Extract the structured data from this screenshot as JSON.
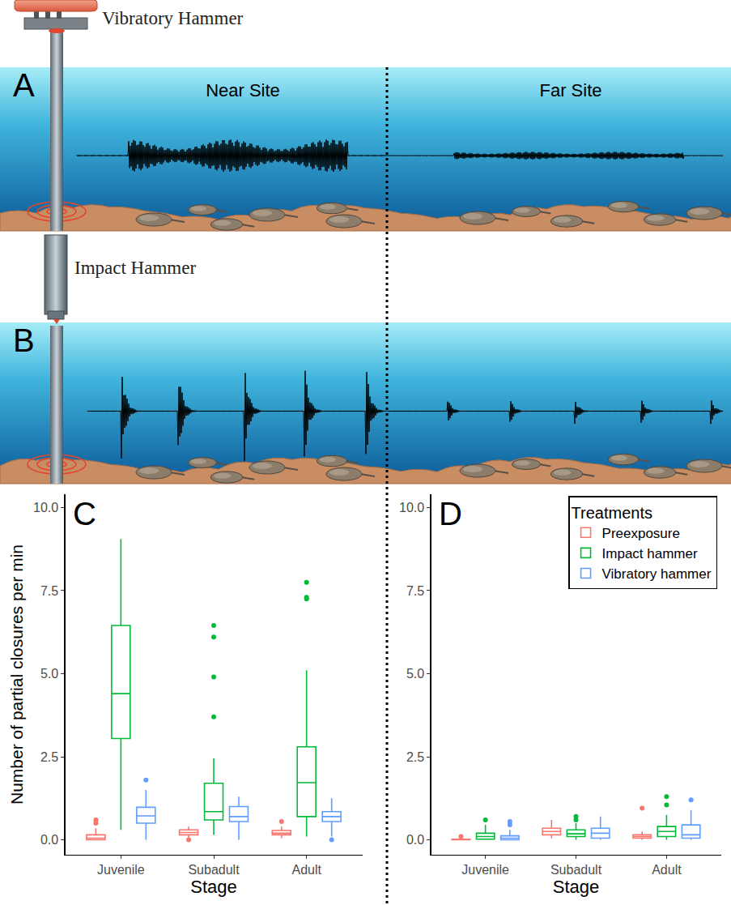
{
  "diagram": {
    "hammers": {
      "vibratory": "Vibratory Hammer",
      "impact": "Impact Hammer"
    },
    "panels": [
      {
        "label": "A",
        "sites": [
          "Near Site",
          "Far Site"
        ]
      },
      {
        "label": "B"
      }
    ]
  },
  "chart_data": [
    {
      "type": "box",
      "annotations": [
        "C"
      ],
      "categories": [
        "Juvenile",
        "Subadult",
        "Adult"
      ],
      "x_label": "Stage",
      "y_label": "Number of partial closures per min",
      "ylim": [
        -0.45,
        10.4
      ],
      "yticks": [
        {
          "value": 0,
          "label": "0.0"
        },
        {
          "value": 2.5,
          "label": "2.5"
        },
        {
          "value": 5,
          "label": "5.0"
        },
        {
          "value": 7.5,
          "label": "7.5"
        },
        {
          "value": 10,
          "label": "10.0"
        }
      ],
      "grid": false,
      "series": [
        {
          "name": "Preexposure",
          "color": "#F8766D",
          "lower": [
            0,
            0.05,
            0.05
          ],
          "q1": [
            0,
            0.15,
            0.15
          ],
          "median": [
            0.05,
            0.22,
            0.2
          ],
          "q3": [
            0.15,
            0.3,
            0.28
          ],
          "upper": [
            0.35,
            0.4,
            0.4
          ],
          "outliers": [
            [
              0.5,
              0.6
            ],
            [
              0
            ],
            [
              0.55
            ]
          ]
        },
        {
          "name": "Impact hammer",
          "color": "#00BA38",
          "lower": [
            0.3,
            0.15,
            0.1
          ],
          "q1": [
            3.05,
            0.6,
            0.7
          ],
          "median": [
            4.4,
            0.85,
            1.72
          ],
          "q3": [
            6.45,
            1.7,
            2.8
          ],
          "upper": [
            9.05,
            2.45,
            5.1
          ],
          "outliers": [
            [],
            [
              3.7,
              4.9,
              6.1,
              6.45
            ],
            [
              7.25,
              7.3,
              7.75
            ]
          ]
        },
        {
          "name": "Vibratory hammer",
          "color": "#619CFF",
          "lower": [
            0,
            0,
            0.1
          ],
          "q1": [
            0.5,
            0.55,
            0.55
          ],
          "median": [
            0.72,
            0.7,
            0.7
          ],
          "q3": [
            0.98,
            1.0,
            0.85
          ],
          "upper": [
            1.5,
            1.3,
            1.25
          ],
          "outliers": [
            [
              1.8
            ],
            [],
            [
              0
            ]
          ]
        }
      ]
    },
    {
      "type": "box",
      "annotations": [
        "D"
      ],
      "categories": [
        "Juvenile",
        "Subadult",
        "Adult"
      ],
      "x_label": "Stage",
      "ylim": [
        -0.45,
        10.4
      ],
      "yticks": [
        {
          "value": 0,
          "label": "0.0"
        },
        {
          "value": 2.5,
          "label": "2.5"
        },
        {
          "value": 5,
          "label": "5.0"
        },
        {
          "value": 7.5,
          "label": "7.5"
        },
        {
          "value": 10,
          "label": "10.0"
        }
      ],
      "grid": false,
      "legend": "top right",
      "legend_title": "Treatments",
      "series": [
        {
          "name": "Preexposure",
          "color": "#F8766D",
          "lower": [
            0,
            0.05,
            0
          ],
          "q1": [
            0,
            0.15,
            0.05
          ],
          "median": [
            0,
            0.25,
            0.1
          ],
          "q3": [
            0.02,
            0.35,
            0.15
          ],
          "upper": [
            0.05,
            0.6,
            0.25
          ],
          "outliers": [
            [
              0.1
            ],
            [],
            [
              0.95
            ]
          ]
        },
        {
          "name": "Impact hammer",
          "color": "#00BA38",
          "lower": [
            0,
            0,
            0
          ],
          "q1": [
            0.02,
            0.1,
            0.1
          ],
          "median": [
            0.1,
            0.18,
            0.25
          ],
          "q3": [
            0.2,
            0.3,
            0.4
          ],
          "upper": [
            0.45,
            0.5,
            0.75
          ],
          "outliers": [
            [
              0.6
            ],
            [
              0.6,
              0.7
            ],
            [
              1.05,
              1.3
            ]
          ]
        },
        {
          "name": "Vibratory hammer",
          "color": "#619CFF",
          "lower": [
            0,
            0,
            0
          ],
          "q1": [
            0,
            0.05,
            0.05
          ],
          "median": [
            0.05,
            0.2,
            0.15
          ],
          "q3": [
            0.12,
            0.35,
            0.45
          ],
          "upper": [
            0.3,
            0.7,
            0.9
          ],
          "outliers": [
            [
              0.45,
              0.55
            ],
            [],
            [
              1.2
            ]
          ]
        }
      ]
    }
  ]
}
